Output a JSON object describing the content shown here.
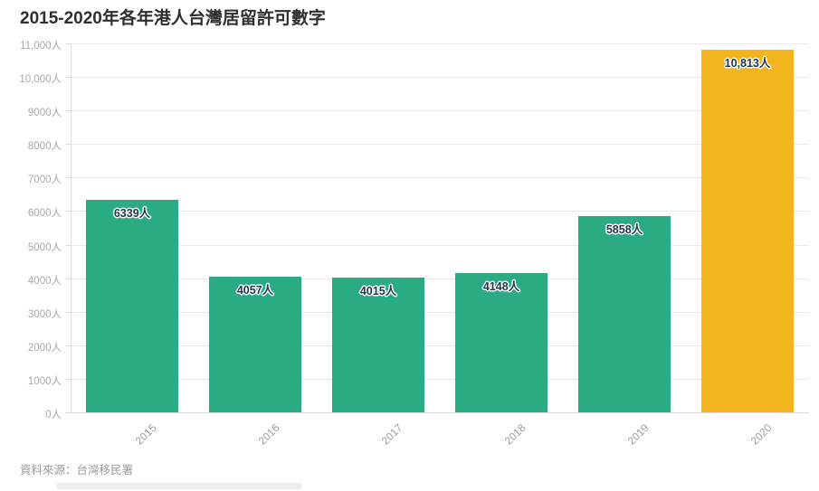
{
  "title": "2015-2020年各年港人台灣居留許可數字",
  "source": "資料來源：台灣移民署",
  "chart_data": {
    "type": "bar",
    "title": "2015-2020年各年港人台灣居留許可數字",
    "xlabel": "",
    "ylabel": "",
    "categories": [
      "2015",
      "2016",
      "2017",
      "2018",
      "2019",
      "2020"
    ],
    "values": [
      6339,
      4057,
      4015,
      4148,
      5858,
      10813
    ],
    "value_labels": [
      "6339人",
      "4057人",
      "4015人",
      "4148人",
      "5858人",
      "10,813人"
    ],
    "bar_colors": [
      "#2aab84",
      "#2aab84",
      "#2aab84",
      "#2aab84",
      "#2aab84",
      "#f2b51d"
    ],
    "ylim": [
      0,
      11000
    ],
    "ytick_step": 1000,
    "ytick_labels": [
      "0人",
      "1000人",
      "2000人",
      "3000人",
      "4000人",
      "5000人",
      "6000人",
      "7000人",
      "8000人",
      "9000人",
      "10,000人",
      "11,000人"
    ],
    "grid": true,
    "legend": false,
    "colors": {
      "bar_green": "#2aab84",
      "bar_yellow": "#f2b51d",
      "gridline": "#e9e9e9",
      "axis": "#dcdcdc",
      "tick_text": "#a9a9a9",
      "value_label_text": "#20384a",
      "title_text": "#2f2f2f",
      "source_text": "#9b9b9b"
    }
  }
}
